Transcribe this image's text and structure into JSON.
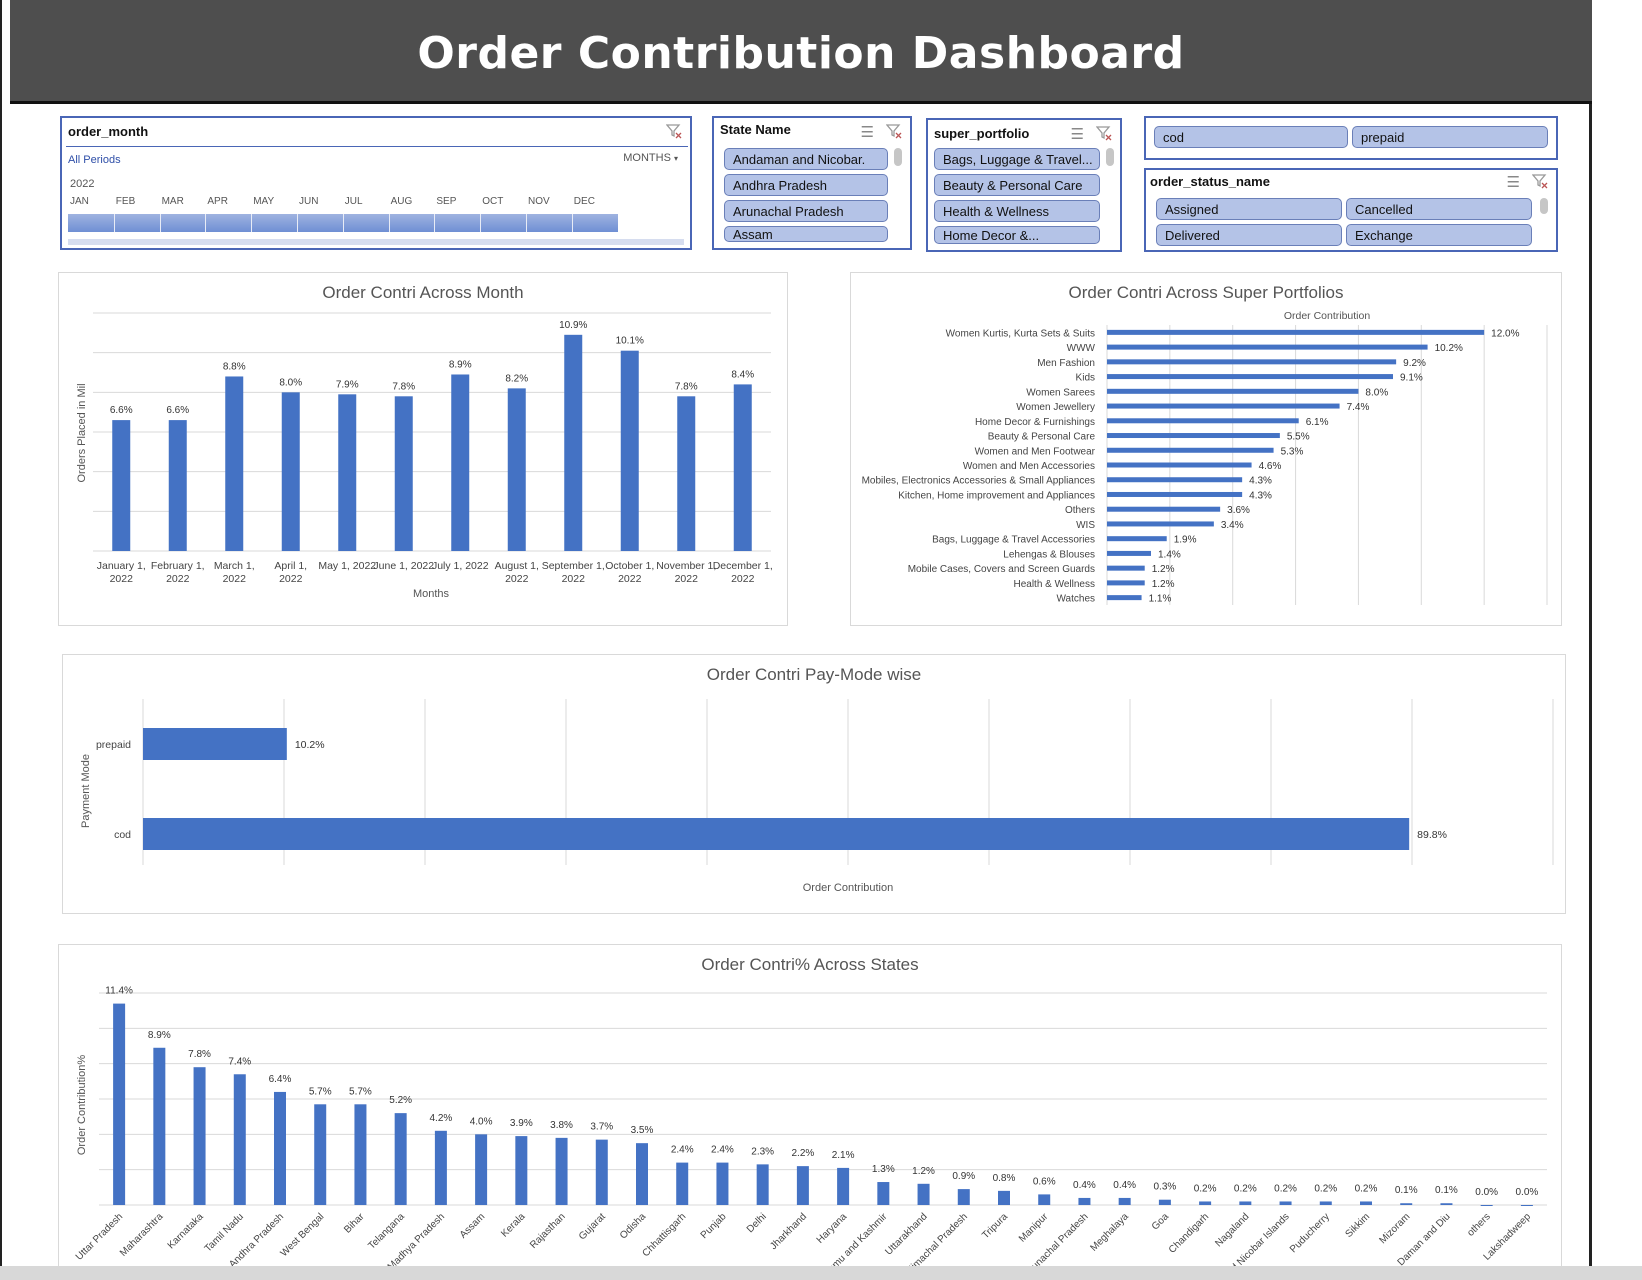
{
  "dashboard": {
    "title": "Order Contribution Dashboard"
  },
  "slicers": {
    "order_month": {
      "title": "order_month",
      "all_periods": "All Periods",
      "level": "MONTHS",
      "year": "2022",
      "months": [
        "JAN",
        "FEB",
        "MAR",
        "APR",
        "MAY",
        "JUN",
        "JUL",
        "AUG",
        "SEP",
        "OCT",
        "NOV",
        "DEC"
      ]
    },
    "state_name": {
      "title": "State Name",
      "items": [
        "Andaman and Nicobar.",
        "Andhra Pradesh",
        "Arunachal Pradesh",
        "Assam"
      ]
    },
    "super_portfolio": {
      "title": "super_portfolio",
      "items": [
        "Bags, Luggage & Travel...",
        "Beauty & Personal Care",
        "Health & Wellness",
        "Home Decor &..."
      ]
    },
    "payment_mode": {
      "items": [
        "cod",
        "prepaid"
      ]
    },
    "order_status_name": {
      "title": "order_status_name",
      "items": [
        "Assigned",
        "Cancelled",
        "Delivered",
        "Exchange"
      ]
    }
  },
  "colors": {
    "bar": "#4472c4",
    "header": "#4e4e4e",
    "slicer_button": "#b4c3e7",
    "slicer_border": "#4a66b6"
  },
  "chart_data": [
    {
      "type": "bar",
      "title": "Order Contri Across Month",
      "xlabel": "Months",
      "ylabel": "Orders Placed in Mil",
      "categories": [
        "January 1, 2022",
        "February 1, 2022",
        "March 1, 2022",
        "April 1, 2022",
        "May 1, 2022",
        "June 1, 2022",
        "July 1, 2022",
        "August 1, 2022",
        "September 1, 2022",
        "October 1, 2022",
        "November 1, 2022",
        "December 1, 2022"
      ],
      "values": [
        6.6,
        6.6,
        8.8,
        8.0,
        7.9,
        7.8,
        8.9,
        8.2,
        10.9,
        10.1,
        7.8,
        8.4
      ],
      "labels": [
        "6.6%",
        "6.6%",
        "8.8%",
        "8.0%",
        "7.9%",
        "7.8%",
        "8.9%",
        "8.2%",
        "10.9%",
        "10.1%",
        "7.8%",
        "8.4%"
      ],
      "ylim": [
        0,
        12
      ],
      "grid": true
    },
    {
      "type": "bar",
      "orientation": "horizontal",
      "title": "Order Contri Across Super Portfolios",
      "xlabel": "Order Contribution",
      "categories": [
        "Women Kurtis, Kurta Sets & Suits",
        "WWW",
        "Men Fashion",
        "Kids",
        "Women Sarees",
        "Women Jewellery",
        "Home Decor & Furnishings",
        "Beauty & Personal Care",
        "Women and Men Footwear",
        "Women and Men Accessories",
        "Mobiles, Electronics Accessories & Small Appliances",
        "Kitchen, Home improvement and Appliances",
        "Others",
        "WIS",
        "Bags, Luggage & Travel Accessories",
        "Lehengas & Blouses",
        "Mobile Cases, Covers and Screen Guards",
        "Health & Wellness",
        "Watches"
      ],
      "values": [
        12.0,
        10.2,
        9.2,
        9.1,
        8.0,
        7.4,
        6.1,
        5.5,
        5.3,
        4.6,
        4.3,
        4.3,
        3.6,
        3.4,
        1.9,
        1.4,
        1.2,
        1.2,
        1.1
      ],
      "labels": [
        "12.0%",
        "10.2%",
        "9.2%",
        "9.1%",
        "8.0%",
        "7.4%",
        "6.1%",
        "5.5%",
        "5.3%",
        "4.6%",
        "4.3%",
        "4.3%",
        "3.6%",
        "3.4%",
        "1.9%",
        "1.4%",
        "1.2%",
        "1.2%",
        "1.1%"
      ],
      "xlim": [
        0,
        14
      ],
      "grid": true
    },
    {
      "type": "bar",
      "orientation": "horizontal",
      "title": "Order Contri Pay-Mode wise",
      "xlabel": "Order Contribution",
      "ylabel": "Payment Mode",
      "categories": [
        "prepaid",
        "cod"
      ],
      "values": [
        10.2,
        89.8
      ],
      "labels": [
        "10.2%",
        "89.8%"
      ],
      "xlim": [
        0,
        100
      ],
      "grid": true
    },
    {
      "type": "bar",
      "title": "Order Contri% Across States",
      "ylabel": "Order Contribution%",
      "categories": [
        "Uttar Pradesh",
        "Maharashtra",
        "Karnataka",
        "Tamil Nadu",
        "Andhra Pradesh",
        "West Bengal",
        "Bihar",
        "Telangana",
        "Madhya Pradesh",
        "Assam",
        "Kerala",
        "Rajasthan",
        "Gujarat",
        "Odisha",
        "Chhattisgarh",
        "Punjab",
        "Delhi",
        "Jharkhand",
        "Haryana",
        "Jammu and Kashmir",
        "Uttarakhand",
        "Himachal Pradesh",
        "Tripura",
        "Manipur",
        "Arunachal Pradesh",
        "Meghalaya",
        "Goa",
        "Chandigarh",
        "Nagaland",
        "Andaman and Nicobar Islands",
        "Puducherry",
        "Sikkim",
        "Mizoram",
        "Daman and Diu",
        "others",
        "Lakshadweep"
      ],
      "values": [
        11.4,
        8.9,
        7.8,
        7.4,
        6.4,
        5.7,
        5.7,
        5.2,
        4.2,
        4.0,
        3.9,
        3.8,
        3.7,
        3.5,
        2.4,
        2.4,
        2.3,
        2.2,
        2.1,
        1.3,
        1.2,
        0.9,
        0.8,
        0.6,
        0.4,
        0.4,
        0.3,
        0.2,
        0.2,
        0.2,
        0.2,
        0.2,
        0.1,
        0.1,
        0.0,
        0.0
      ],
      "labels": [
        "11.4%",
        "8.9%",
        "7.8%",
        "7.4%",
        "6.4%",
        "5.7%",
        "5.7%",
        "5.2%",
        "4.2%",
        "4.0%",
        "3.9%",
        "3.8%",
        "3.7%",
        "3.5%",
        "2.4%",
        "2.4%",
        "2.3%",
        "2.2%",
        "2.1%",
        "1.3%",
        "1.2%",
        "0.9%",
        "0.8%",
        "0.6%",
        "0.4%",
        "0.4%",
        "0.3%",
        "0.2%",
        "0.2%",
        "0.2%",
        "0.2%",
        "0.2%",
        "0.1%",
        "0.1%",
        "0.0%",
        "0.0%"
      ],
      "ylim": [
        0,
        12
      ],
      "grid": true
    }
  ]
}
